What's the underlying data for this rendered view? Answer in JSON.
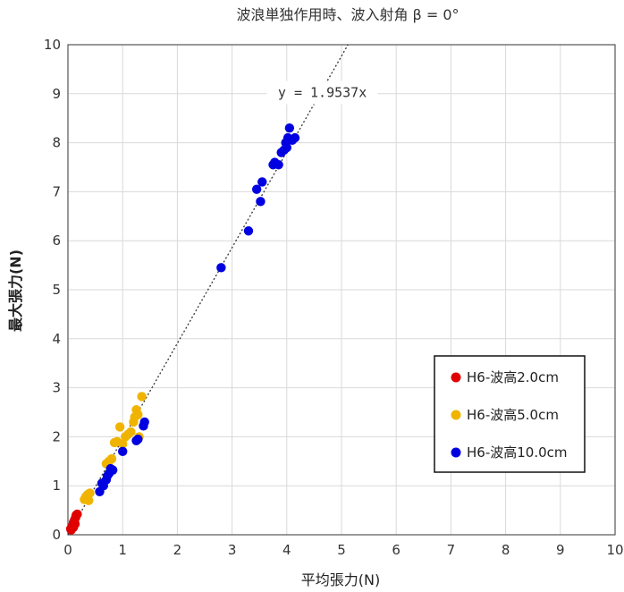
{
  "chart_data": {
    "type": "scatter",
    "title": "波浪単独作用時、波入射角 β = 0°",
    "xlabel": "平均張力(N)",
    "ylabel": "最大張力(N)",
    "xlim": [
      0,
      10
    ],
    "ylim": [
      0,
      10
    ],
    "xticks": [
      "0",
      "1",
      "2",
      "3",
      "4",
      "5",
      "6",
      "7",
      "8",
      "9",
      "10"
    ],
    "yticks": [
      "0",
      "1",
      "2",
      "3",
      "4",
      "5",
      "6",
      "7",
      "8",
      "9",
      "10"
    ],
    "grid": true,
    "legend_position": "bottom-right",
    "trendline": {
      "slope": 1.9537,
      "label": "y = 1.9537x",
      "style": "dotted"
    },
    "series": [
      {
        "name": "H6-波高2.0cm",
        "color": "#e00000",
        "points": [
          [
            0.05,
            0.12
          ],
          [
            0.08,
            0.18
          ],
          [
            0.1,
            0.25
          ],
          [
            0.12,
            0.3
          ],
          [
            0.14,
            0.35
          ],
          [
            0.15,
            0.4
          ],
          [
            0.17,
            0.42
          ],
          [
            0.1,
            0.15
          ],
          [
            0.13,
            0.22
          ],
          [
            0.06,
            0.1
          ]
        ]
      },
      {
        "name": "H6-波高5.0cm",
        "color": "#f0b400",
        "points": [
          [
            0.3,
            0.72
          ],
          [
            0.33,
            0.78
          ],
          [
            0.36,
            0.82
          ],
          [
            0.38,
            0.7
          ],
          [
            0.4,
            0.85
          ],
          [
            0.7,
            1.45
          ],
          [
            0.75,
            1.5
          ],
          [
            0.8,
            1.55
          ],
          [
            0.85,
            1.88
          ],
          [
            0.9,
            1.9
          ],
          [
            0.95,
            2.2
          ],
          [
            1.0,
            1.85
          ],
          [
            1.05,
            2.0
          ],
          [
            1.1,
            2.05
          ],
          [
            1.15,
            2.1
          ],
          [
            1.2,
            2.3
          ],
          [
            1.22,
            2.4
          ],
          [
            1.25,
            2.55
          ],
          [
            1.28,
            2.45
          ],
          [
            1.3,
            2.0
          ],
          [
            1.35,
            2.82
          ]
        ]
      },
      {
        "name": "H6-波高10.0cm",
        "color": "#0000e0",
        "points": [
          [
            0.58,
            0.88
          ],
          [
            0.62,
            1.05
          ],
          [
            0.65,
            1.0
          ],
          [
            0.7,
            1.12
          ],
          [
            0.72,
            1.2
          ],
          [
            0.75,
            1.25
          ],
          [
            0.78,
            1.35
          ],
          [
            0.82,
            1.32
          ],
          [
            1.0,
            1.7
          ],
          [
            1.25,
            1.92
          ],
          [
            1.28,
            1.95
          ],
          [
            1.38,
            2.22
          ],
          [
            1.4,
            2.3
          ],
          [
            2.8,
            5.45
          ],
          [
            3.3,
            6.2
          ],
          [
            3.45,
            7.05
          ],
          [
            3.52,
            6.8
          ],
          [
            3.55,
            7.2
          ],
          [
            3.75,
            7.55
          ],
          [
            3.78,
            7.6
          ],
          [
            3.85,
            7.55
          ],
          [
            3.9,
            7.8
          ],
          [
            3.95,
            7.85
          ],
          [
            3.98,
            8.0
          ],
          [
            4.0,
            7.9
          ],
          [
            4.02,
            8.1
          ],
          [
            4.05,
            8.3
          ],
          [
            4.1,
            8.05
          ],
          [
            4.15,
            8.1
          ]
        ]
      }
    ]
  }
}
